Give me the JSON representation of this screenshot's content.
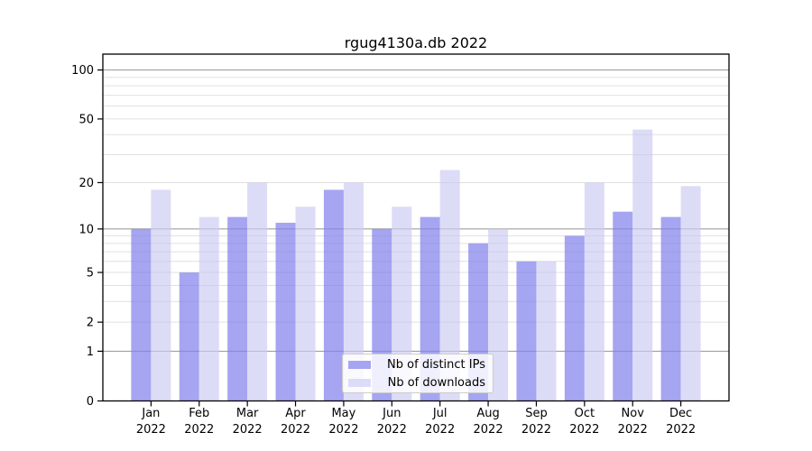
{
  "chart_data": {
    "type": "bar",
    "title": "rgug4130a.db 2022",
    "categories": [
      "Jan",
      "Feb",
      "Mar",
      "Apr",
      "May",
      "Jun",
      "Jul",
      "Aug",
      "Sep",
      "Oct",
      "Nov",
      "Dec"
    ],
    "year_label": "2022",
    "series": [
      {
        "name": "Nb of distinct IPs",
        "color": "#a5a5f1",
        "values": [
          10,
          5,
          12,
          11,
          18,
          10,
          12,
          8,
          6,
          9,
          13,
          12
        ]
      },
      {
        "name": "Nb of downloads",
        "color": "#dcdcf7",
        "values": [
          18,
          12,
          20,
          14,
          20,
          14,
          24,
          10,
          6,
          20,
          43,
          19
        ]
      }
    ],
    "yaxis": {
      "scale": "log1p",
      "tick_values": [
        0,
        1,
        2,
        5,
        10,
        20,
        50,
        100
      ],
      "major_gridlines": [
        1,
        10,
        100
      ],
      "minor_gridlines": [
        2,
        3,
        4,
        5,
        6,
        7,
        8,
        9,
        20,
        30,
        40,
        50,
        60,
        70,
        80,
        90
      ],
      "ylim": [
        0,
        125
      ]
    },
    "xlabel": "",
    "ylabel": "",
    "grid": true,
    "legend_position": "lower center",
    "colors": {
      "major_grid": "#bdbdbd",
      "minor_grid": "#ececec",
      "axis_frame": "#000000",
      "background": "#ffffff",
      "bar_distinct_ips": "#a5a5f1",
      "bar_downloads": "#dcdcf7"
    }
  }
}
